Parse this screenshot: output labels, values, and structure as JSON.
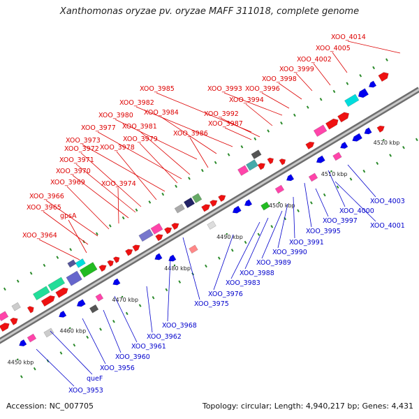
{
  "title": "Xanthomonas oryzae pv. oryzae MAFF 311018, complete genome",
  "footer": {
    "accession": "Accession: NC_007705",
    "topology": "Topology: circular; Length: 4,940,217 bp; Genes: 4,431"
  },
  "axis_unit": "kbp",
  "axis_ticks": [
    4450,
    4460,
    4470,
    4480,
    4490,
    4500,
    4510,
    4520
  ],
  "colors": {
    "upper_labels": "#dd0000",
    "lower_labels": "#0000cc",
    "backbone": "#9a9a9a"
  },
  "upper_labels": [
    "XOO_4014",
    "XOO_4005",
    "XOO_4002",
    "XOO_3999",
    "XOO_3998",
    "XOO_3996",
    "XOO_3993",
    "XOO_3994",
    "XOO_3985",
    "XOO_3992",
    "XOO_3982",
    "XOO_3987",
    "XOO_3984",
    "XOO_3980",
    "XOO_3986",
    "XOO_3981",
    "XOO_3977",
    "XOO_3979",
    "XOO_3973",
    "XOO_3978",
    "XOO_3972",
    "XOO_3971",
    "XOO_3970",
    "XOO_3974",
    "XOO_3969",
    "XOO_3966",
    "XOO_3965",
    "gpsA",
    "XOO_3964"
  ],
  "lower_labels": [
    "XOO_4003",
    "XOO_4000",
    "XOO_4001",
    "XOO_3997",
    "XOO_3995",
    "XOO_3991",
    "XOO_3990",
    "XOO_3989",
    "XOO_3988",
    "XOO_3983",
    "XOO_3976",
    "XOO_3975",
    "XOO_3968",
    "XOO_3962",
    "XOO_3961",
    "XOO_3960",
    "XOO_3956",
    "queF",
    "XOO_3953"
  ]
}
